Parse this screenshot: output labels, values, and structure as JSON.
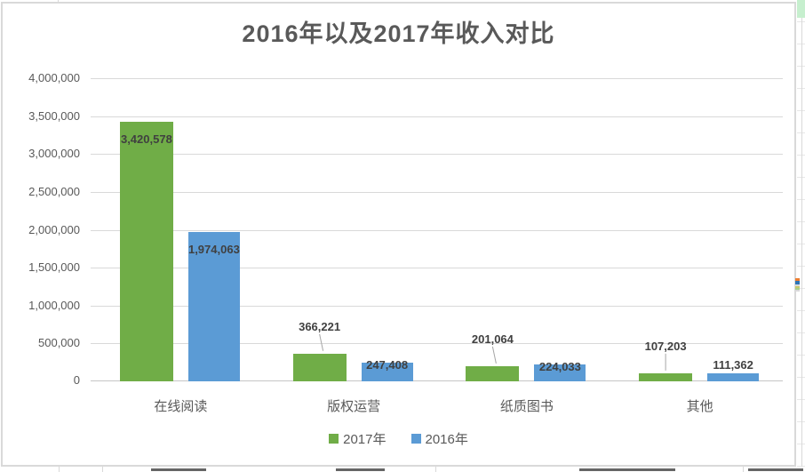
{
  "chart_data": {
    "type": "bar",
    "title": "2016年以及2017年收入对比",
    "categories": [
      "在线阅读",
      "版权运营",
      "纸质图书",
      "其他"
    ],
    "series": [
      {
        "name": "2017年",
        "color": "#70AD47",
        "values": [
          3420578,
          366221,
          201064,
          107203
        ],
        "data_labels": [
          "3,420,578",
          "366,221",
          "201,064",
          "107,203"
        ],
        "label_placement": [
          "inside",
          "callout",
          "callout",
          "callout"
        ]
      },
      {
        "name": "2016年",
        "color": "#5B9BD5",
        "values": [
          1974063,
          247408,
          224033,
          111362
        ],
        "data_labels": [
          "1,974,063",
          "247,408",
          "224,033",
          "111,362"
        ],
        "label_placement": [
          "inside",
          "straddle",
          "straddle",
          "above"
        ]
      }
    ],
    "ylim": [
      0,
      4000000
    ],
    "ytick_step": 500000,
    "ytick_labels": [
      "0",
      "500,000",
      "1,000,000",
      "1,500,000",
      "2,000,000",
      "2,500,000",
      "3,000,000",
      "3,500,000",
      "4,000,000"
    ],
    "grid": true,
    "legend_position": "bottom"
  },
  "colors": {
    "grid": "#D9D9D9",
    "axis_line": "#C6C6C6",
    "title_text": "#595959",
    "tick_text": "#595959",
    "data_label_text": "#404040",
    "chart_border": "#D9D9D9",
    "leader_line": "#A6A6A6",
    "sheet_selected_cell": "#C6EFCE"
  }
}
